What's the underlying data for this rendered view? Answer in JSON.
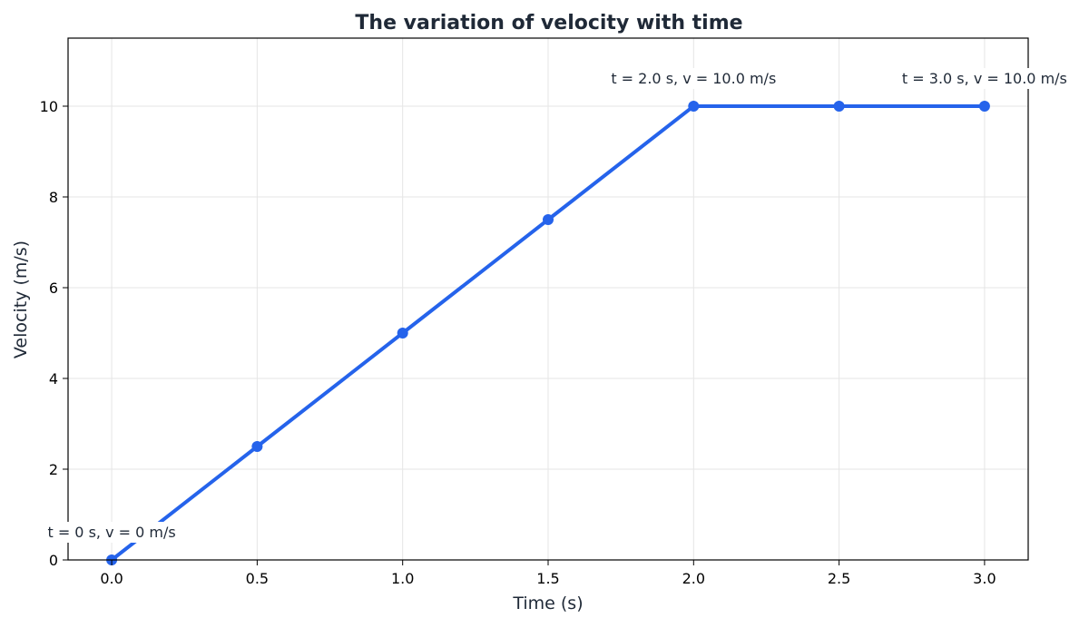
{
  "chart_data": {
    "type": "line",
    "title": "The variation of velocity with time",
    "xlabel": "Time (s)",
    "ylabel": "Velocity (m/s)",
    "xlim": [
      -0.15,
      3.15
    ],
    "ylim": [
      0,
      11.5
    ],
    "xticks": [
      0.0,
      0.5,
      1.0,
      1.5,
      2.0,
      2.5,
      3.0
    ],
    "xtick_labels": [
      "0.0",
      "0.5",
      "1.0",
      "1.5",
      "2.0",
      "2.5",
      "3.0"
    ],
    "yticks": [
      0,
      2,
      4,
      6,
      8,
      10
    ],
    "ytick_labels": [
      "0",
      "2",
      "4",
      "6",
      "8",
      "10"
    ],
    "grid": true,
    "series": [
      {
        "name": "velocity",
        "color": "#2563eb",
        "x": [
          0.0,
          0.5,
          1.0,
          1.5,
          2.0,
          2.5,
          3.0
        ],
        "y": [
          0,
          2.5,
          5,
          7.5,
          10,
          10,
          10
        ]
      }
    ],
    "annotations": [
      {
        "text": "t = 0 s, v = 0 m/s",
        "x": 0.0,
        "y": 0
      },
      {
        "text": "t = 2.0 s, v = 10.0 m/s",
        "x": 2.0,
        "y": 10
      },
      {
        "text": "t = 3.0 s, v = 10.0 m/s",
        "x": 3.0,
        "y": 10
      }
    ]
  }
}
